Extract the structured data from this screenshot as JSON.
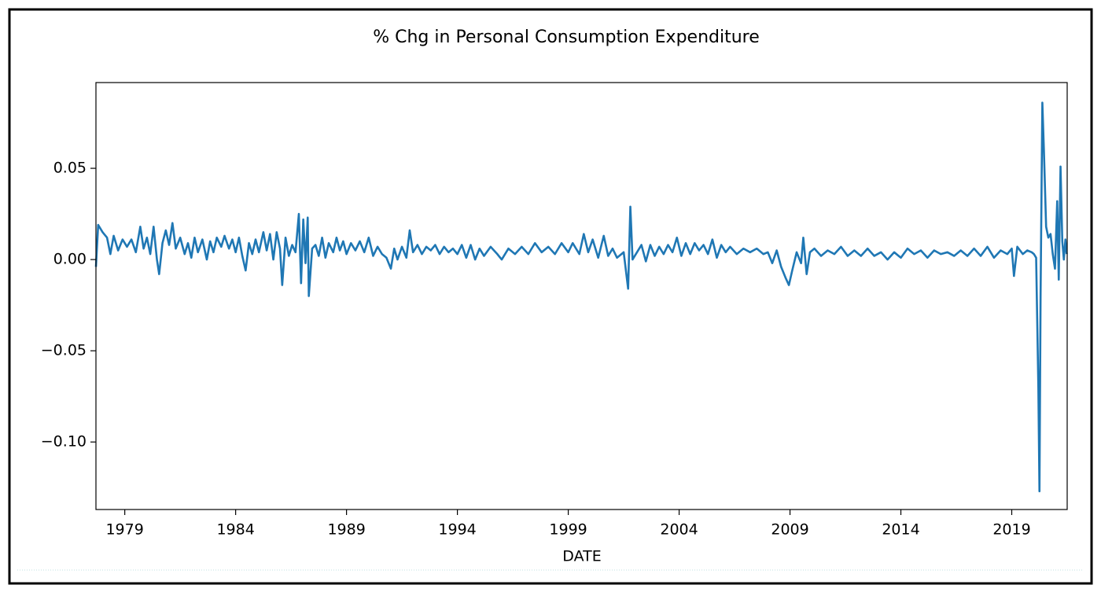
{
  "chart_data": {
    "type": "line",
    "title": "% Chg in Personal Consumption Expenditure",
    "x_label": "DATE",
    "color": "#1f77b4",
    "xlim": [
      1977.7,
      2021.5
    ],
    "xticks": [
      1979,
      1984,
      1989,
      1994,
      1999,
      2004,
      2009,
      2014,
      2019
    ],
    "ylim": [
      -0.137,
      0.097
    ],
    "yticks": [
      {
        "value": -0.1,
        "label": "−0.10"
      },
      {
        "value": -0.05,
        "label": "−0.05"
      },
      {
        "value": 0,
        "label": "0.00"
      },
      0.05
    ],
    "grid": false,
    "x": [
      1977.7,
      1977.8,
      1978.0,
      1978.2,
      1978.35,
      1978.5,
      1978.7,
      1978.9,
      1979.1,
      1979.3,
      1979.5,
      1979.7,
      1979.85,
      1980.0,
      1980.15,
      1980.3,
      1980.45,
      1980.55,
      1980.7,
      1980.85,
      1981.0,
      1981.15,
      1981.3,
      1981.5,
      1981.7,
      1981.85,
      1982.0,
      1982.15,
      1982.3,
      1982.5,
      1982.7,
      1982.85,
      1983.0,
      1983.15,
      1983.35,
      1983.5,
      1983.7,
      1983.85,
      1984.0,
      1984.15,
      1984.3,
      1984.45,
      1984.6,
      1984.75,
      1984.9,
      1985.05,
      1985.25,
      1985.4,
      1985.55,
      1985.7,
      1985.85,
      1986.0,
      1986.1,
      1986.25,
      1986.4,
      1986.55,
      1986.7,
      1986.85,
      1986.95,
      1987.05,
      1987.15,
      1987.25,
      1987.3,
      1987.45,
      1987.6,
      1987.75,
      1987.9,
      1988.05,
      1988.2,
      1988.4,
      1988.55,
      1988.7,
      1988.85,
      1989.0,
      1989.2,
      1989.4,
      1989.6,
      1989.8,
      1990.0,
      1990.2,
      1990.4,
      1990.6,
      1990.8,
      1991.0,
      1991.15,
      1991.3,
      1991.5,
      1991.7,
      1991.85,
      1992.0,
      1992.2,
      1992.4,
      1992.6,
      1992.8,
      1993.0,
      1993.2,
      1993.4,
      1993.6,
      1993.8,
      1994.0,
      1994.2,
      1994.4,
      1994.6,
      1994.8,
      1995.0,
      1995.2,
      1995.5,
      1995.8,
      1996.0,
      1996.3,
      1996.6,
      1996.9,
      1997.2,
      1997.5,
      1997.8,
      1998.1,
      1998.4,
      1998.7,
      1999.0,
      1999.2,
      1999.5,
      1999.7,
      1999.9,
      2000.1,
      2000.35,
      2000.6,
      2000.8,
      2001.0,
      2001.2,
      2001.5,
      2001.7,
      2001.8,
      2001.9,
      2002.1,
      2002.3,
      2002.5,
      2002.7,
      2002.9,
      2003.1,
      2003.3,
      2003.5,
      2003.7,
      2003.9,
      2004.1,
      2004.3,
      2004.5,
      2004.7,
      2004.9,
      2005.1,
      2005.3,
      2005.5,
      2005.7,
      2005.9,
      2006.1,
      2006.3,
      2006.6,
      2006.9,
      2007.2,
      2007.5,
      2007.8,
      2008.0,
      2008.2,
      2008.4,
      2008.6,
      2008.8,
      2008.95,
      2009.1,
      2009.3,
      2009.5,
      2009.6,
      2009.75,
      2009.9,
      2010.1,
      2010.4,
      2010.7,
      2011.0,
      2011.3,
      2011.6,
      2011.9,
      2012.2,
      2012.5,
      2012.8,
      2013.1,
      2013.4,
      2013.7,
      2014.0,
      2014.3,
      2014.6,
      2014.9,
      2015.2,
      2015.5,
      2015.8,
      2016.1,
      2016.4,
      2016.7,
      2017.0,
      2017.3,
      2017.6,
      2017.9,
      2018.2,
      2018.5,
      2018.8,
      2019.0,
      2019.1,
      2019.25,
      2019.5,
      2019.7,
      2019.9,
      2020.0,
      2020.1,
      2020.2,
      2020.25,
      2020.3,
      2020.38,
      2020.45,
      2020.55,
      2020.65,
      2020.75,
      2020.85,
      2020.95,
      2021.05,
      2021.12,
      2021.2,
      2021.28,
      2021.35,
      2021.42,
      2021.48
    ],
    "values": [
      -0.004,
      0.019,
      0.015,
      0.012,
      0.003,
      0.013,
      0.005,
      0.011,
      0.007,
      0.011,
      0.004,
      0.018,
      0.006,
      0.012,
      0.003,
      0.018,
      0.0,
      -0.008,
      0.009,
      0.016,
      0.008,
      0.02,
      0.006,
      0.012,
      0.003,
      0.009,
      0.001,
      0.012,
      0.004,
      0.011,
      0.0,
      0.01,
      0.004,
      0.012,
      0.007,
      0.013,
      0.006,
      0.011,
      0.004,
      0.012,
      0.002,
      -0.006,
      0.009,
      0.003,
      0.011,
      0.004,
      0.015,
      0.005,
      0.014,
      0.0,
      0.015,
      0.006,
      -0.014,
      0.012,
      0.002,
      0.008,
      0.004,
      0.025,
      -0.013,
      0.022,
      -0.002,
      0.023,
      -0.02,
      0.006,
      0.008,
      0.002,
      0.012,
      0.001,
      0.009,
      0.004,
      0.012,
      0.005,
      0.01,
      0.003,
      0.009,
      0.005,
      0.01,
      0.004,
      0.012,
      0.002,
      0.007,
      0.003,
      0.001,
      -0.005,
      0.006,
      0.0,
      0.007,
      0.001,
      0.016,
      0.004,
      0.008,
      0.003,
      0.007,
      0.005,
      0.008,
      0.003,
      0.007,
      0.004,
      0.006,
      0.003,
      0.008,
      0.001,
      0.008,
      0.0,
      0.006,
      0.002,
      0.007,
      0.003,
      0.0,
      0.006,
      0.003,
      0.007,
      0.003,
      0.009,
      0.004,
      0.007,
      0.003,
      0.009,
      0.004,
      0.009,
      0.003,
      0.014,
      0.004,
      0.011,
      0.001,
      0.013,
      0.002,
      0.006,
      0.001,
      0.004,
      -0.016,
      0.029,
      0.0,
      0.004,
      0.008,
      -0.001,
      0.008,
      0.002,
      0.007,
      0.003,
      0.008,
      0.004,
      0.012,
      0.002,
      0.009,
      0.003,
      0.009,
      0.005,
      0.008,
      0.003,
      0.011,
      0.001,
      0.008,
      0.004,
      0.007,
      0.003,
      0.006,
      0.004,
      0.006,
      0.003,
      0.004,
      -0.002,
      0.005,
      -0.004,
      -0.01,
      -0.014,
      -0.006,
      0.004,
      -0.002,
      0.012,
      -0.008,
      0.004,
      0.006,
      0.002,
      0.005,
      0.003,
      0.007,
      0.002,
      0.005,
      0.002,
      0.006,
      0.002,
      0.004,
      0.0,
      0.004,
      0.001,
      0.006,
      0.003,
      0.005,
      0.001,
      0.005,
      0.003,
      0.004,
      0.002,
      0.005,
      0.002,
      0.006,
      0.002,
      0.007,
      0.001,
      0.005,
      0.003,
      0.006,
      -0.009,
      0.007,
      0.003,
      0.005,
      0.004,
      0.003,
      0.001,
      -0.07,
      -0.127,
      -0.02,
      0.086,
      0.06,
      0.018,
      0.012,
      0.014,
      0.003,
      -0.005,
      0.032,
      -0.011,
      0.051,
      0.01,
      0.0,
      0.011,
      0.003
    ]
  }
}
